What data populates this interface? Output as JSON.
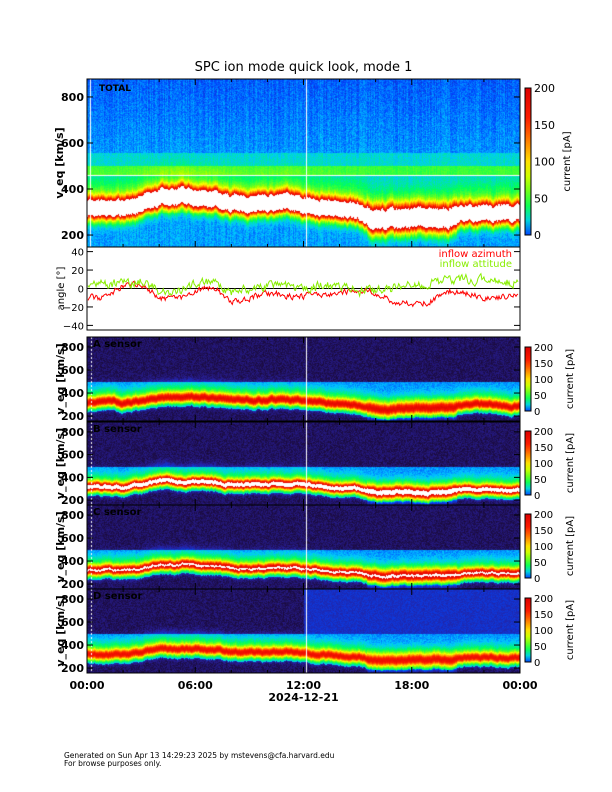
{
  "title": "SPC ion mode quick look, mode 1",
  "footer": {
    "line1": "Generated on Sun Apr 13 14:29:23 2025 by mstevens@cfa.harvard.edu",
    "line2": "For browse purposes only."
  },
  "colors": {
    "azimuth": "#ff0000",
    "attitude": "#88ee00",
    "saturation": "#ffffff"
  },
  "chart_data": [
    {
      "type": "heatmap",
      "panel": "TOTAL",
      "label": "TOTAL",
      "ylabel": "v_eq [km/s]",
      "yticks": [
        "200",
        "400",
        "600",
        "800"
      ],
      "ylim": [
        150,
        880
      ],
      "colorbar": {
        "label": "current [pA]",
        "ticks": [
          "0",
          "50",
          "100",
          "150",
          "200"
        ],
        "range": [
          0,
          200
        ]
      },
      "x_hours": [
        0,
        1,
        2,
        3,
        4,
        5,
        6,
        7,
        8,
        9,
        10,
        11,
        12,
        13,
        14,
        15,
        16,
        17,
        18,
        19,
        20,
        21,
        22,
        23
      ],
      "peak_speed_kms": [
        320,
        320,
        320,
        340,
        370,
        360,
        370,
        360,
        340,
        340,
        340,
        340,
        335,
        320,
        310,
        300,
        270,
        265,
        270,
        270,
        270,
        300,
        300,
        295
      ]
    },
    {
      "type": "line",
      "ylabel": "angle [°]",
      "yticks": [
        "-40",
        "-20",
        "0",
        "20",
        "40"
      ],
      "ylim": [
        -45,
        45
      ],
      "x_hours": [
        0,
        1,
        2,
        3,
        4,
        5,
        6,
        7,
        8,
        9,
        10,
        11,
        12,
        13,
        14,
        15,
        16,
        17,
        18,
        19,
        20,
        21,
        22,
        23,
        24
      ],
      "series": [
        {
          "name": "inflow azimuth",
          "values": [
            -10,
            -10,
            4,
            3,
            -10,
            -12,
            -3,
            2,
            -15,
            -10,
            -5,
            -8,
            -8,
            -8,
            -5,
            -3,
            -4,
            -15,
            -17,
            -15,
            -2,
            -5,
            -10,
            -10,
            -6
          ]
        },
        {
          "name": "inflow attitude",
          "values": [
            0,
            5,
            5,
            8,
            -3,
            -4,
            5,
            8,
            -5,
            0,
            3,
            2,
            0,
            3,
            3,
            -3,
            -3,
            0,
            3,
            5,
            8,
            10,
            9,
            8,
            6
          ]
        }
      ]
    },
    {
      "type": "heatmap",
      "panel": "A",
      "label": "A sensor",
      "ylabel": "v_eq [km/s]",
      "yticks": [
        "200",
        "400",
        "600",
        "800"
      ],
      "colorbar": {
        "label": "current [pA]",
        "ticks": [
          "0",
          "50",
          "100",
          "150",
          "200"
        ]
      }
    },
    {
      "type": "heatmap",
      "panel": "B",
      "label": "B sensor",
      "ylabel": "v_eq [km/s]",
      "yticks": [
        "200",
        "400",
        "600",
        "800"
      ],
      "colorbar": {
        "label": "current [pA]",
        "ticks": [
          "0",
          "50",
          "100",
          "150",
          "200"
        ]
      }
    },
    {
      "type": "heatmap",
      "panel": "C",
      "label": "C sensor",
      "ylabel": "v_eq [km/s]",
      "yticks": [
        "200",
        "400",
        "600",
        "800"
      ],
      "colorbar": {
        "label": "current [pA]",
        "ticks": [
          "0",
          "50",
          "100",
          "150",
          "200"
        ]
      }
    },
    {
      "type": "heatmap",
      "panel": "D",
      "label": "D sensor",
      "ylabel": "v_eq [km/s]",
      "yticks": [
        "200",
        "400",
        "600",
        "800"
      ],
      "colorbar": {
        "label": "current [pA]",
        "ticks": [
          "0",
          "50",
          "100",
          "150",
          "200"
        ]
      }
    }
  ],
  "xaxis": {
    "ticks": [
      "00:00",
      "06:00",
      "12:00",
      "18:00",
      "00:00"
    ],
    "date": "2024-12-21"
  }
}
